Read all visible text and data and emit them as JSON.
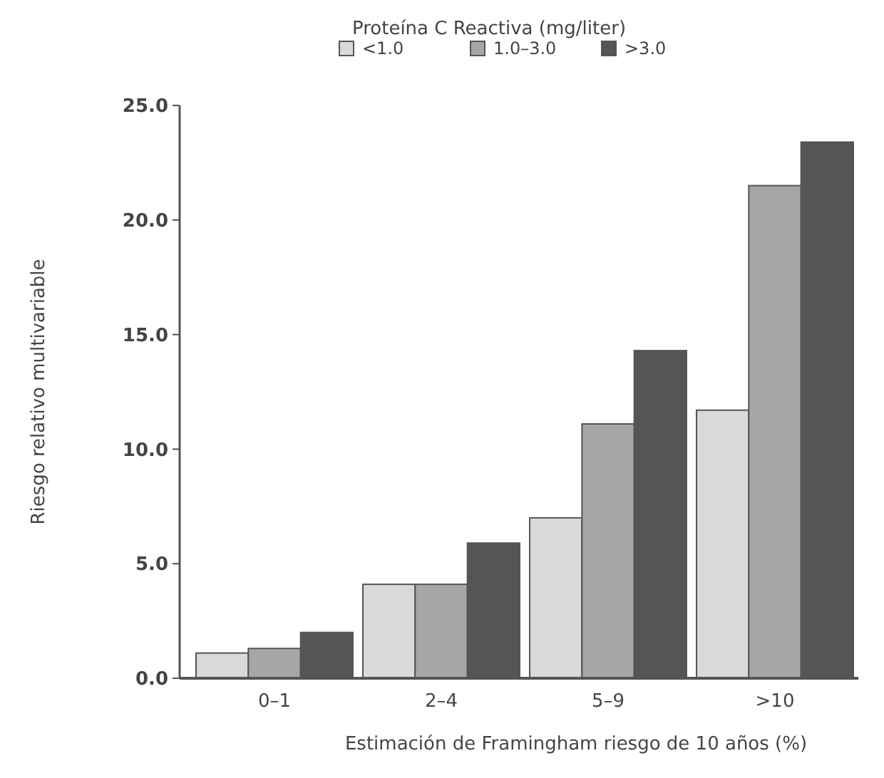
{
  "chart_data": {
    "type": "bar",
    "legend_title": "Proteína C Reactiva (mg/liter)",
    "xlabel": "Estimación de Framingham riesgo de 10 años (%)",
    "ylabel": "Riesgo relativo multivariable",
    "categories": [
      "0–1",
      "2–4",
      "5–9",
      ">10"
    ],
    "series": [
      {
        "name": "<1.0",
        "color": "#d9d9d9",
        "values": [
          1.1,
          4.1,
          7.0,
          11.7
        ]
      },
      {
        "name": "1.0–3.0",
        "color": "#a6a6a6",
        "values": [
          1.3,
          4.1,
          11.1,
          21.5
        ]
      },
      {
        "name": ">3.0",
        "color": "#555555",
        "values": [
          2.0,
          5.9,
          14.3,
          23.4
        ]
      }
    ],
    "ylim": [
      0,
      25
    ],
    "yticks": [
      {
        "value": 0,
        "label": "0.0"
      },
      {
        "value": 5,
        "label": "5.0"
      },
      {
        "value": 10,
        "label": "10.0"
      },
      {
        "value": 15,
        "label": "15.0"
      },
      {
        "value": 20,
        "label": "20.0"
      },
      {
        "value": 25,
        "label": "25.0"
      }
    ],
    "grid": false,
    "legend": "top"
  }
}
